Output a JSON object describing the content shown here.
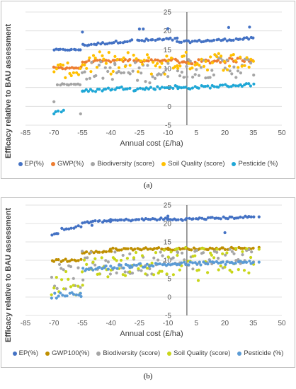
{
  "chart_data": [
    {
      "panel": "a",
      "type": "scatter",
      "caption": "(a)",
      "xlabel": "Annual cost (£/ha)",
      "ylabel": "Efficacy relative to BAU assessment",
      "xlim": [
        -85,
        50
      ],
      "ylim": [
        -5,
        25
      ],
      "xticks": [
        -85,
        -70,
        -55,
        -40,
        -25,
        -10,
        5,
        20,
        35,
        50
      ],
      "yticks": [
        -5,
        0,
        5,
        10,
        15,
        20,
        25
      ],
      "grid": "horizontal",
      "legend_position": "bottom",
      "series": [
        {
          "name": "EP(%)",
          "color": "#4472c4",
          "bands": [
            {
              "x": [
                -70,
                -56
              ],
              "y": 15
            },
            {
              "x": [
                -55,
                -29
              ],
              "y": [
                16.2,
                17.4
              ],
              "spread": 0.3
            },
            {
              "x": [
                -26,
                -5
              ],
              "y": [
                17.4,
                17.8
              ],
              "spread": 0.4
            },
            {
              "x": [
                -5,
                35
              ],
              "y": [
                17.0,
                18.0
              ],
              "spread": 0.3
            }
          ],
          "outliers": [
            [
              -55,
              19.7
            ],
            [
              -25,
              20.5
            ],
            [
              -23,
              20.5
            ],
            [
              -10,
              20.6
            ],
            [
              22,
              20.9
            ],
            [
              33,
              21.0
            ]
          ]
        },
        {
          "name": "GWP(%)",
          "color": "#ed7d31",
          "bands": [
            {
              "x": [
                -70,
                -56
              ],
              "y": 10.2,
              "spread": 0.3
            },
            {
              "x": [
                -55,
                -30
              ],
              "y": [
                11.8,
                12.2
              ],
              "spread": 0.3
            },
            {
              "x": [
                -28,
                -5
              ],
              "y": [
                12.0,
                12.3
              ],
              "spread": 0.3
            },
            {
              "x": [
                -5,
                35
              ],
              "y": [
                11.5,
                12.5
              ],
              "spread": 0.6
            }
          ]
        },
        {
          "name": "Biodiversity (score)",
          "color": "#a5a5a5",
          "bands": [
            {
              "x": [
                -68,
                -56
              ],
              "y": 5.8,
              "spread": 0.2
            },
            {
              "x": [
                -55,
                -38
              ],
              "y": 9.5,
              "spread": 2.5
            },
            {
              "x": [
                -38,
                -10
              ],
              "y": 9.0,
              "spread": 2.8
            },
            {
              "x": [
                -5,
                35
              ],
              "y": 10.5,
              "spread": 3.0
            }
          ],
          "outliers": [
            [
              -70,
              1.2
            ],
            [
              -56,
              -2.0
            ],
            [
              -10,
              7.9
            ],
            [
              0,
              7.8
            ]
          ]
        },
        {
          "name": "Soil Quality (score)",
          "color": "#ffc000",
          "bands": [
            {
              "x": [
                -70,
                -56
              ],
              "y": 9.5,
              "spread": 2.0
            },
            {
              "x": [
                -55,
                -30
              ],
              "y": 11.5,
              "spread": 3.0
            },
            {
              "x": [
                -28,
                -5
              ],
              "y": 11.2,
              "spread": 3.0
            },
            {
              "x": [
                -5,
                35
              ],
              "y": 12.0,
              "spread": 2.5
            }
          ]
        },
        {
          "name": "Pesticide (%)",
          "color": "#1fa7d6",
          "bands": [
            {
              "x": [
                -69,
                -65
              ],
              "y": -1.3,
              "spread": 0.3
            },
            {
              "x": [
                -55,
                -30
              ],
              "y": [
                4.0,
                5.0
              ],
              "spread": 0.4
            },
            {
              "x": [
                -28,
                -5
              ],
              "y": [
                4.5,
                5.2
              ],
              "spread": 0.4
            },
            {
              "x": [
                -5,
                35
              ],
              "y": [
                4.8,
                5.8
              ],
              "spread": 0.4
            }
          ],
          "outliers": [
            [
              -70,
              -2.0
            ],
            [
              -55,
              4.0
            ]
          ]
        }
      ]
    },
    {
      "panel": "b",
      "type": "scatter",
      "caption": "(b)",
      "xlabel": "Annual cost (£/ha)",
      "ylabel": "Efficacy relative to BAU assessment",
      "xlim": [
        -85,
        50
      ],
      "ylim": [
        -5,
        25
      ],
      "xticks": [
        -85,
        -70,
        -55,
        -40,
        -25,
        -10,
        5,
        20,
        35,
        50
      ],
      "yticks": [
        -5,
        0,
        5,
        10,
        15,
        20,
        25
      ],
      "grid": "horizontal",
      "legend_position": "bottom",
      "series": [
        {
          "name": "EP(%)",
          "color": "#4472c4",
          "bands": [
            {
              "x": [
                -71,
                -68
              ],
              "y": 17.0,
              "spread": 0.3
            },
            {
              "x": [
                -66,
                -56
              ],
              "y": [
                18.5,
                19.2
              ],
              "spread": 0.3
            },
            {
              "x": [
                -55,
                -40
              ],
              "y": [
                20.2,
                20.8
              ],
              "spread": 0.3
            },
            {
              "x": [
                -40,
                -10
              ],
              "y": [
                20.8,
                21.3
              ],
              "spread": 0.3
            },
            {
              "x": [
                -10,
                35
              ],
              "y": [
                21.0,
                21.8
              ],
              "spread": 0.3
            }
          ],
          "outliers": [
            [
              -50,
              19.5
            ],
            [
              -10,
              22.0
            ],
            [
              38,
              21.8
            ],
            [
              20,
              17.5
            ]
          ]
        },
        {
          "name": "GWP100(%)",
          "color": "#bf8f00",
          "bands": [
            {
              "x": [
                -71,
                -56
              ],
              "y": 10.0,
              "spread": 0.4
            },
            {
              "x": [
                -55,
                -40
              ],
              "y": [
                12.0,
                12.5
              ],
              "spread": 0.3
            },
            {
              "x": [
                -40,
                -10
              ],
              "y": [
                13.0,
                13.2
              ],
              "spread": 0.3
            },
            {
              "x": [
                -10,
                35
              ],
              "y": [
                13.0,
                13.3
              ],
              "spread": 0.3
            }
          ],
          "outliers": [
            [
              38,
              13.5
            ]
          ]
        },
        {
          "name": "Biodiversity (score)",
          "color": "#a5a5a5",
          "bands": [
            {
              "x": [
                -71,
                -55
              ],
              "y": 5.5,
              "spread": 3.5
            },
            {
              "x": [
                -55,
                -30
              ],
              "y": 9.0,
              "spread": 3.5
            },
            {
              "x": [
                -30,
                -5
              ],
              "y": 9.5,
              "spread": 3.5
            },
            {
              "x": [
                -5,
                35
              ],
              "y": 10.5,
              "spread": 3.0
            }
          ]
        },
        {
          "name": "Soil Quality (score)",
          "color": "#c9d61a",
          "bands": [
            {
              "x": [
                -71,
                -55
              ],
              "y": 4.0,
              "spread": 3.5
            },
            {
              "x": [
                -55,
                -30
              ],
              "y": 8.5,
              "spread": 3.0
            },
            {
              "x": [
                -30,
                -5
              ],
              "y": 9.5,
              "spread": 3.5
            },
            {
              "x": [
                -5,
                35
              ],
              "y": 10.0,
              "spread": 3.5
            }
          ],
          "outliers": [
            [
              38,
              13.0
            ],
            [
              6,
              4.5
            ]
          ]
        },
        {
          "name": "Pesticide (%)",
          "color": "#5b9bd5",
          "bands": [
            {
              "x": [
                -71,
                -56
              ],
              "y": 0.5,
              "spread": 0.8
            },
            {
              "x": [
                -55,
                -30
              ],
              "y": [
                7.5,
                8.5
              ],
              "spread": 0.5
            },
            {
              "x": [
                -30,
                -5
              ],
              "y": [
                8.5,
                9.0
              ],
              "spread": 0.5
            },
            {
              "x": [
                -5,
                35
              ],
              "y": [
                9.0,
                9.5
              ],
              "spread": 0.5
            }
          ],
          "outliers": [
            [
              38,
              9.5
            ],
            [
              -56,
              1.0
            ]
          ]
        }
      ]
    }
  ]
}
